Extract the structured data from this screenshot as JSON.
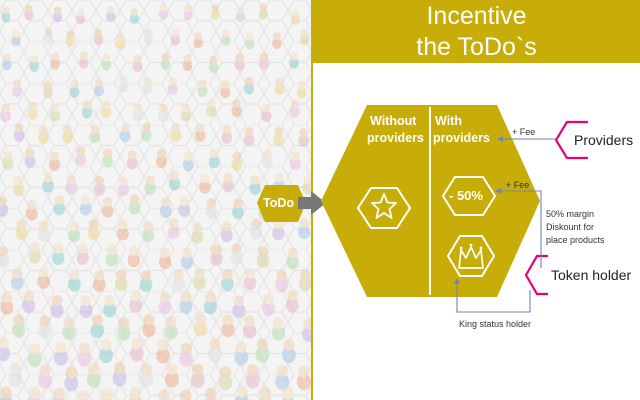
{
  "header": {
    "title_line1": "Incentive",
    "title_line2": "the ToDo`s"
  },
  "diagram": {
    "todo_label": "ToDo",
    "left_column": {
      "label_line1": "Without",
      "label_line2": "providers",
      "icon": "star-hexagon-icon"
    },
    "right_column": {
      "label_line1": "With",
      "label_line2": "providers",
      "icon": "crown-hexagon-icon"
    },
    "discount_badge": "- 50%",
    "fee_label_top": "+ Fee",
    "fee_label_mid": "+ Fee",
    "providers_label": "Providers",
    "token_holder_label": "Token holder",
    "margin_note": [
      "50% margin",
      "Diskount for",
      "place products"
    ],
    "king_label": "King status holder"
  },
  "colors": {
    "gold": "#c8ad08",
    "magenta": "#e5007e",
    "arrow_grey": "#777777",
    "connector_blue": "#6f86b4"
  }
}
